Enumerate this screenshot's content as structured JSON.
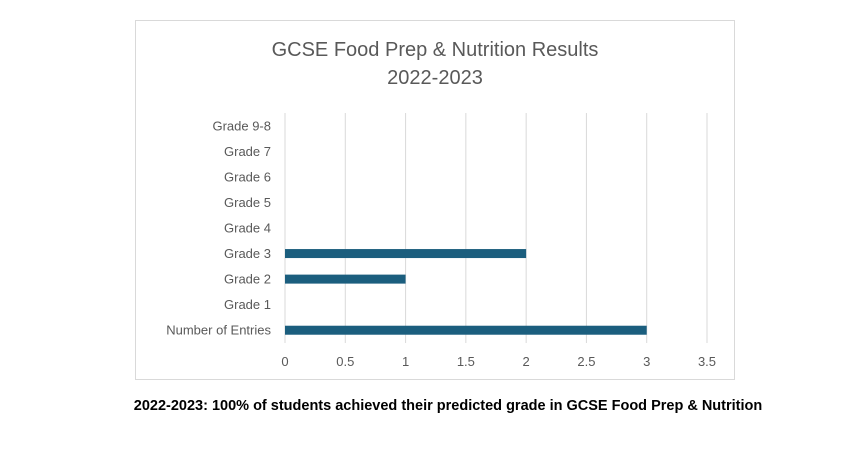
{
  "chart_data": {
    "type": "bar",
    "orientation": "horizontal",
    "title": "GCSE Food Prep & Nutrition Results",
    "subtitle": "2022-2023",
    "categories": [
      "Number of Entries",
      "Grade 1",
      "Grade 2",
      "Grade 3",
      "Grade 4",
      "Grade 5",
      "Grade 6",
      "Grade 7",
      "Grade 9-8"
    ],
    "values": [
      3,
      0,
      1,
      2,
      0,
      0,
      0,
      0,
      0
    ],
    "xlim": [
      0,
      3.5
    ],
    "xticks": [
      "0",
      "0.5",
      "1",
      "1.5",
      "2",
      "2.5",
      "3",
      "3.5"
    ],
    "xlabel": "",
    "ylabel": "",
    "grid": true,
    "bar_color": "#1b5e7e",
    "grid_color": "#d9d9d9"
  },
  "caption": "2022-2023: 100% of students achieved their predicted grade in GCSE Food Prep & Nutrition"
}
